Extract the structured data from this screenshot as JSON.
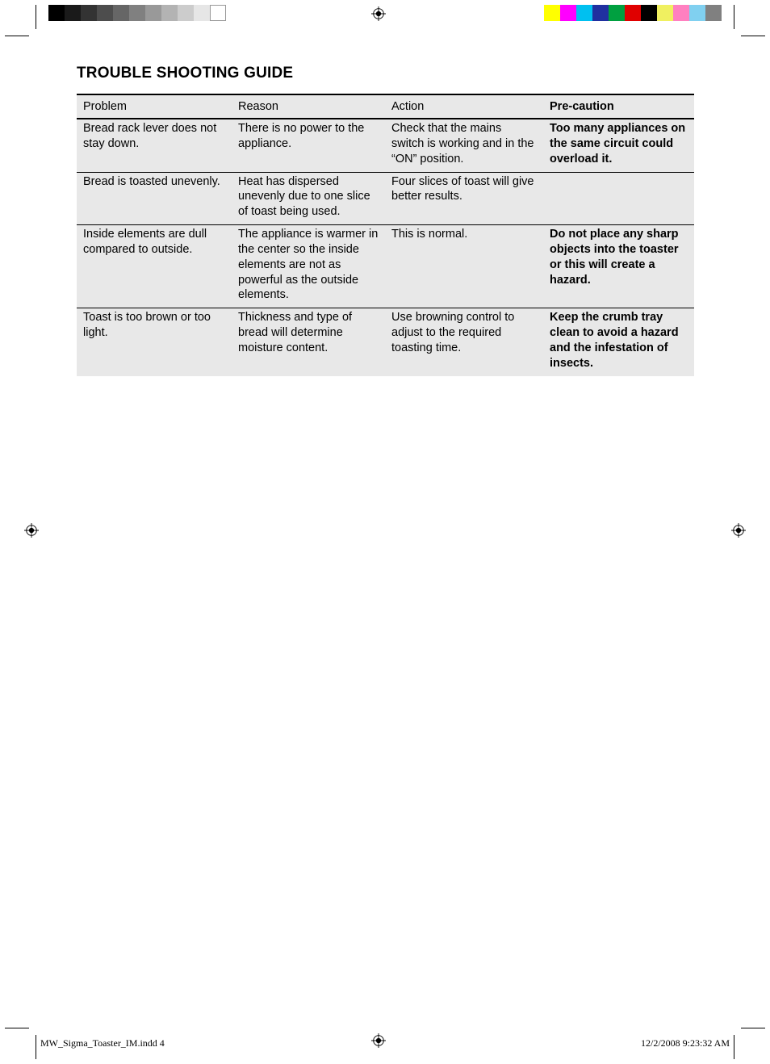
{
  "title": "TROUBLE SHOOTING GUIDE",
  "columns": [
    "Problem",
    "Reason",
    "Action",
    "Pre-caution"
  ],
  "rows": [
    {
      "problem": "Bread rack lever does not stay down.",
      "reason": "There is no power to the appliance.",
      "action": "Check that the mains switch is working and in the “ON” position.",
      "precaution": "Too many appliances on the same circuit could overload it."
    },
    {
      "problem": "Bread is toasted unevenly.",
      "reason": "Heat has dispersed unevenly due to one slice of toast being used.",
      "action": "Four slices of toast will give better results.",
      "precaution": ""
    },
    {
      "problem": "Inside elements are dull compared to outside.",
      "reason": "The appliance is warmer in the center so the inside elements are not as powerful as the outside elements.",
      "action": "This is normal.",
      "precaution": "Do not place any sharp objects into the toaster or this will create a hazard."
    },
    {
      "problem": "Toast is too brown or too light.",
      "reason": "Thickness and type of bread will determine moisture content.",
      "action": "Use browning control to adjust to the required toasting time.",
      "precaution": "Keep the crumb tray clean to avoid a hazard and the infestation of insects."
    }
  ],
  "footer": {
    "left": "MW_Sigma_Toaster_IM.indd   4",
    "right": "12/2/2008   9:23:32 AM"
  },
  "grayscale_bar": [
    "#000000",
    "#1a1a1a",
    "#333333",
    "#4d4d4d",
    "#666666",
    "#808080",
    "#999999",
    "#b3b3b3",
    "#cccccc",
    "#e6e6e6",
    "#ffffff"
  ],
  "color_bar_colors": [
    "#ffff00",
    "#ff00ff",
    "#00c0f0",
    "#2030a0",
    "#00a040",
    "#e00000",
    "#000000",
    "#f0f060",
    "#ff80c0",
    "#80d0f0",
    "#808080"
  ],
  "page_bg": "#ffffff",
  "table_bg": "#e8e8e8"
}
